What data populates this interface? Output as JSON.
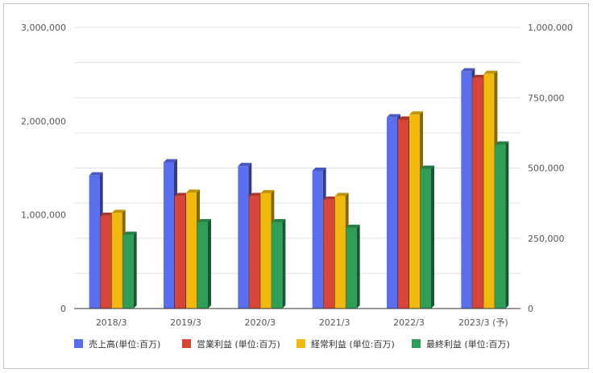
{
  "chart_data": {
    "type": "bar",
    "categories": [
      "2018/3",
      "2019/3",
      "2020/3",
      "2021/3",
      "2022/3",
      "2023/3 (予)"
    ],
    "series": [
      {
        "name": "売上高(単位:百万)",
        "axis": "left",
        "color": "#5a6ff0",
        "values": [
          1420000,
          1560000,
          1520000,
          1470000,
          2040000,
          2530000
        ]
      },
      {
        "name": "営業利益 (単位:百万)",
        "axis": "right",
        "color": "#d64537",
        "values": [
          330000,
          400000,
          400000,
          387000,
          672000,
          820000
        ]
      },
      {
        "name": "経常利益 (単位:百万)",
        "axis": "right",
        "color": "#f0b90b",
        "values": [
          340000,
          412000,
          410000,
          400000,
          690000,
          835000
        ]
      },
      {
        "name": "最終利益 (単位:百万)",
        "axis": "right",
        "color": "#2e9e58",
        "values": [
          262000,
          307000,
          307000,
          287000,
          497000,
          583000
        ]
      }
    ],
    "y_left": {
      "ticks": [
        "0",
        "1,000,000",
        "2,000,000",
        "3,000,000"
      ],
      "min": 0,
      "max": 3000000
    },
    "y_right": {
      "ticks": [
        "0",
        "250,000",
        "500,000",
        "750,000",
        "1,000,000"
      ],
      "min": 0,
      "max": 1000000
    },
    "grid": true,
    "legend_position": "bottom"
  }
}
